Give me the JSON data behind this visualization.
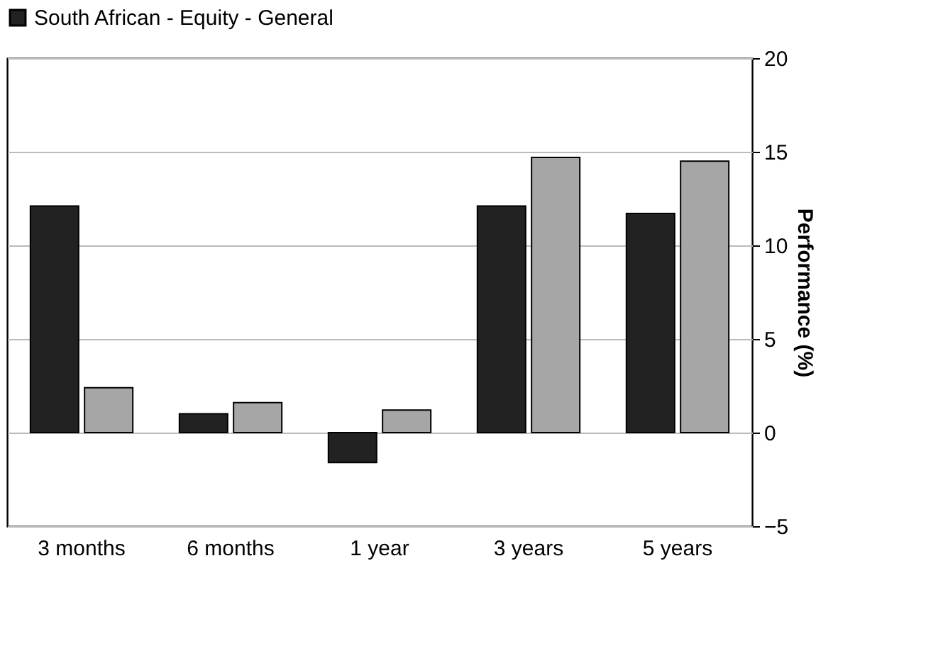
{
  "chart_data": {
    "type": "bar",
    "ylabel": "Performance (%)",
    "categories": [
      "3 months",
      "6 months",
      "1 year",
      "3 years",
      "5 years"
    ],
    "series": [
      {
        "name": "South African - Equity - General",
        "color": "#222222",
        "values": [
          12.1,
          1.0,
          -1.6,
          12.1,
          11.7
        ]
      },
      {
        "color": "#a6a6a6",
        "values": [
          2.4,
          1.6,
          1.2,
          14.7,
          14.5
        ]
      }
    ],
    "ylim": [
      -5,
      20
    ],
    "yticks": [
      -5,
      0,
      5,
      10,
      15,
      20
    ],
    "grid": "y",
    "legend": "top left"
  }
}
